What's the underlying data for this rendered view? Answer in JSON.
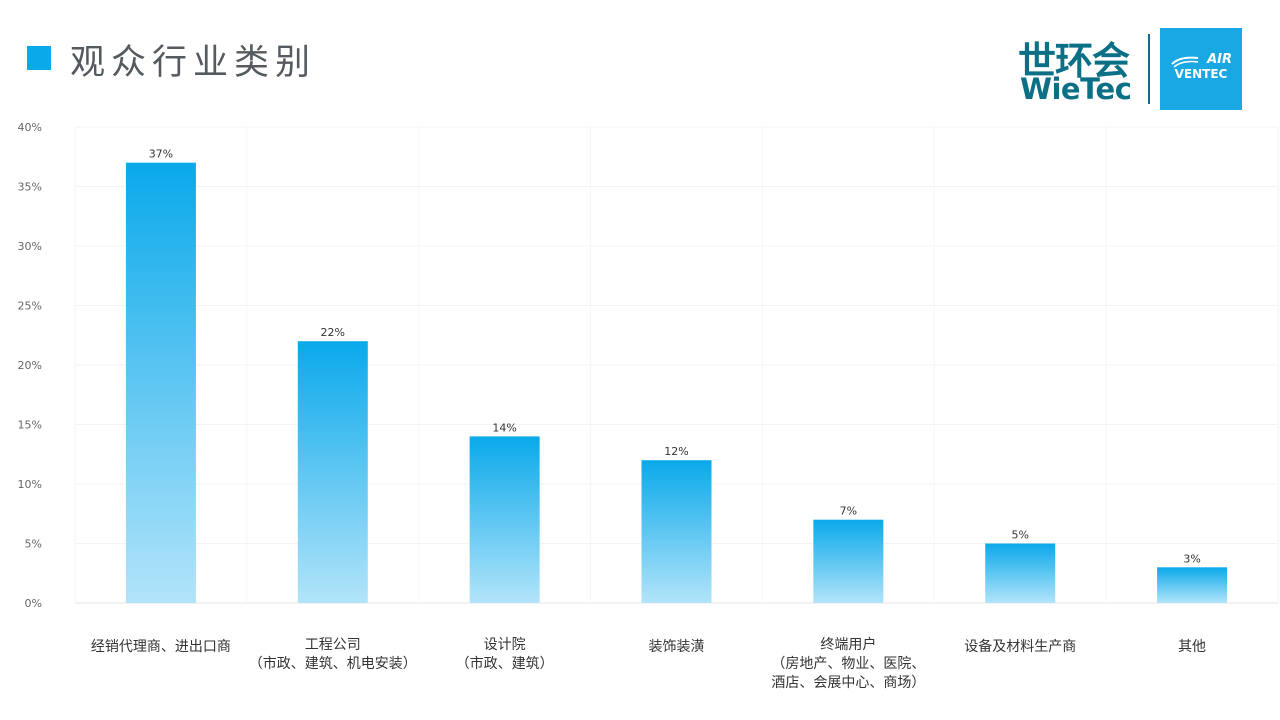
{
  "header": {
    "title": "观众行业类别"
  },
  "logo": {
    "cn": "世环会",
    "en": "WieTec",
    "box_top": "AIR",
    "box_bottom": "VENTEC"
  },
  "colors": {
    "accent": "#0aa9ea",
    "bar_top": "#0aa9ea",
    "bar_bottom": "#b2e4fa",
    "logo_dark": "#0b6f86",
    "logo_box": "#1aa8e4"
  },
  "chart_data": {
    "type": "bar",
    "categories": [
      [
        "经销代理商、进出口商"
      ],
      [
        "工程公司",
        "（市政、建筑、机电安装）"
      ],
      [
        "设计院",
        "（市政、建筑）"
      ],
      [
        "装饰装潢"
      ],
      [
        "终端用户",
        "（房地产、物业、医院、",
        "酒店、会展中心、商场）"
      ],
      [
        "设备及材料生产商"
      ],
      [
        "其他"
      ]
    ],
    "values": [
      37,
      22,
      14,
      12,
      7,
      5,
      3
    ],
    "data_labels": [
      "37%",
      "22%",
      "14%",
      "12%",
      "7%",
      "5%",
      "3%"
    ],
    "y_ticks": [
      "0%",
      "5%",
      "10%",
      "15%",
      "20%",
      "25%",
      "30%",
      "35%",
      "40%"
    ],
    "ylim": [
      0,
      40
    ],
    "grid": true
  }
}
